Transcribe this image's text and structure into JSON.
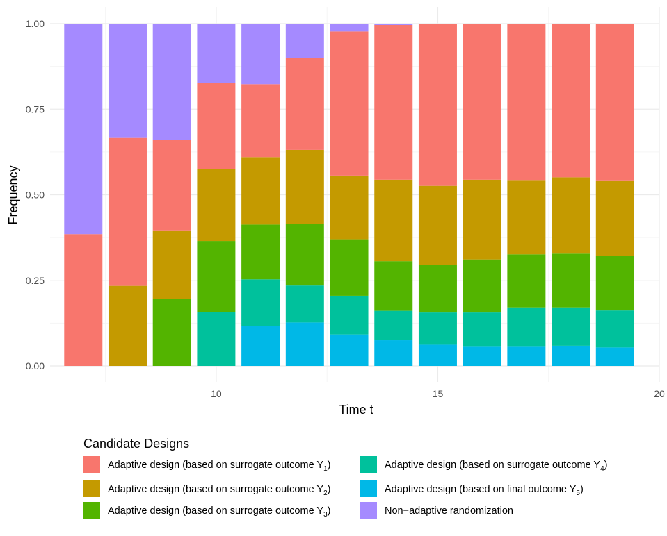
{
  "chart_data": {
    "type": "bar",
    "stacked": true,
    "x": [
      7,
      8,
      9,
      10,
      11,
      12,
      13,
      14,
      15,
      16,
      17,
      18,
      19
    ],
    "xlabel": "Time t",
    "ylabel": "Frequency",
    "xlim": [
      6.25,
      20
    ],
    "ylim": [
      0,
      1
    ],
    "x_ticks": [
      10,
      15,
      20
    ],
    "x_tick_labels": [
      "10",
      "15",
      "20"
    ],
    "y_ticks": [
      0,
      0.25,
      0.5,
      0.75,
      1
    ],
    "y_tick_labels": [
      "0.00",
      "0.25",
      "0.50",
      "0.75",
      "1.00"
    ],
    "grid": true,
    "legend": {
      "title": "Candidate Designs",
      "placement": "bottom",
      "columns": 2
    },
    "series": [
      {
        "name": "Adaptive design (based on final outcome Y5)",
        "label_main": "Adaptive design (based on final outcome Y",
        "label_sub": "5",
        "label_tail": ")",
        "color": "#00B8E7",
        "values": [
          0,
          0,
          0,
          0,
          0.117,
          0.127,
          0.092,
          0.075,
          0.062,
          0.056,
          0.056,
          0.059,
          0.054
        ]
      },
      {
        "name": "Adaptive design (based on surrogate outcome Y4)",
        "label_main": "Adaptive design (based on surrogate outcome Y",
        "label_sub": "4",
        "label_tail": ")",
        "color": "#00C19C",
        "values": [
          0,
          0,
          0,
          0.157,
          0.136,
          0.108,
          0.113,
          0.086,
          0.094,
          0.1,
          0.115,
          0.112,
          0.108
        ]
      },
      {
        "name": "Adaptive design (based on surrogate outcome Y3)",
        "label_main": "Adaptive design (based on surrogate outcome Y",
        "label_sub": "3",
        "label_tail": ")",
        "color": "#53B400",
        "values": [
          0,
          0,
          0.196,
          0.208,
          0.16,
          0.179,
          0.165,
          0.145,
          0.14,
          0.155,
          0.155,
          0.157,
          0.16
        ]
      },
      {
        "name": "Adaptive design (based on surrogate outcome Y2)",
        "label_main": "Adaptive design (based on surrogate outcome Y",
        "label_sub": "2",
        "label_tail": ")",
        "color": "#C49A00",
        "values": [
          0,
          0.234,
          0.2,
          0.21,
          0.197,
          0.217,
          0.186,
          0.238,
          0.23,
          0.233,
          0.217,
          0.223,
          0.22
        ]
      },
      {
        "name": "Adaptive design (based on surrogate outcome Y1)",
        "label_main": "Adaptive design (based on surrogate outcome Y",
        "label_sub": "1",
        "label_tail": ")",
        "color": "#F8766D",
        "values": [
          0.385,
          0.432,
          0.264,
          0.252,
          0.213,
          0.268,
          0.421,
          0.452,
          0.472,
          0.456,
          0.457,
          0.449,
          0.458
        ]
      },
      {
        "name": "Non-adaptive randomization",
        "label_main": "Non−adaptive randomization",
        "label_sub": "",
        "label_tail": "",
        "color": "#A58AFF",
        "values": [
          0.615,
          0.334,
          0.34,
          0.173,
          0.177,
          0.101,
          0.023,
          0.004,
          0.002,
          0,
          0,
          0,
          0
        ]
      }
    ],
    "legend_order": [
      4,
      3,
      2,
      1,
      0,
      5
    ]
  },
  "colors": {
    "grid_major": "#EBEBEB",
    "grid_minor": "#F5F5F5",
    "tick_text": "#4D4D4D"
  }
}
